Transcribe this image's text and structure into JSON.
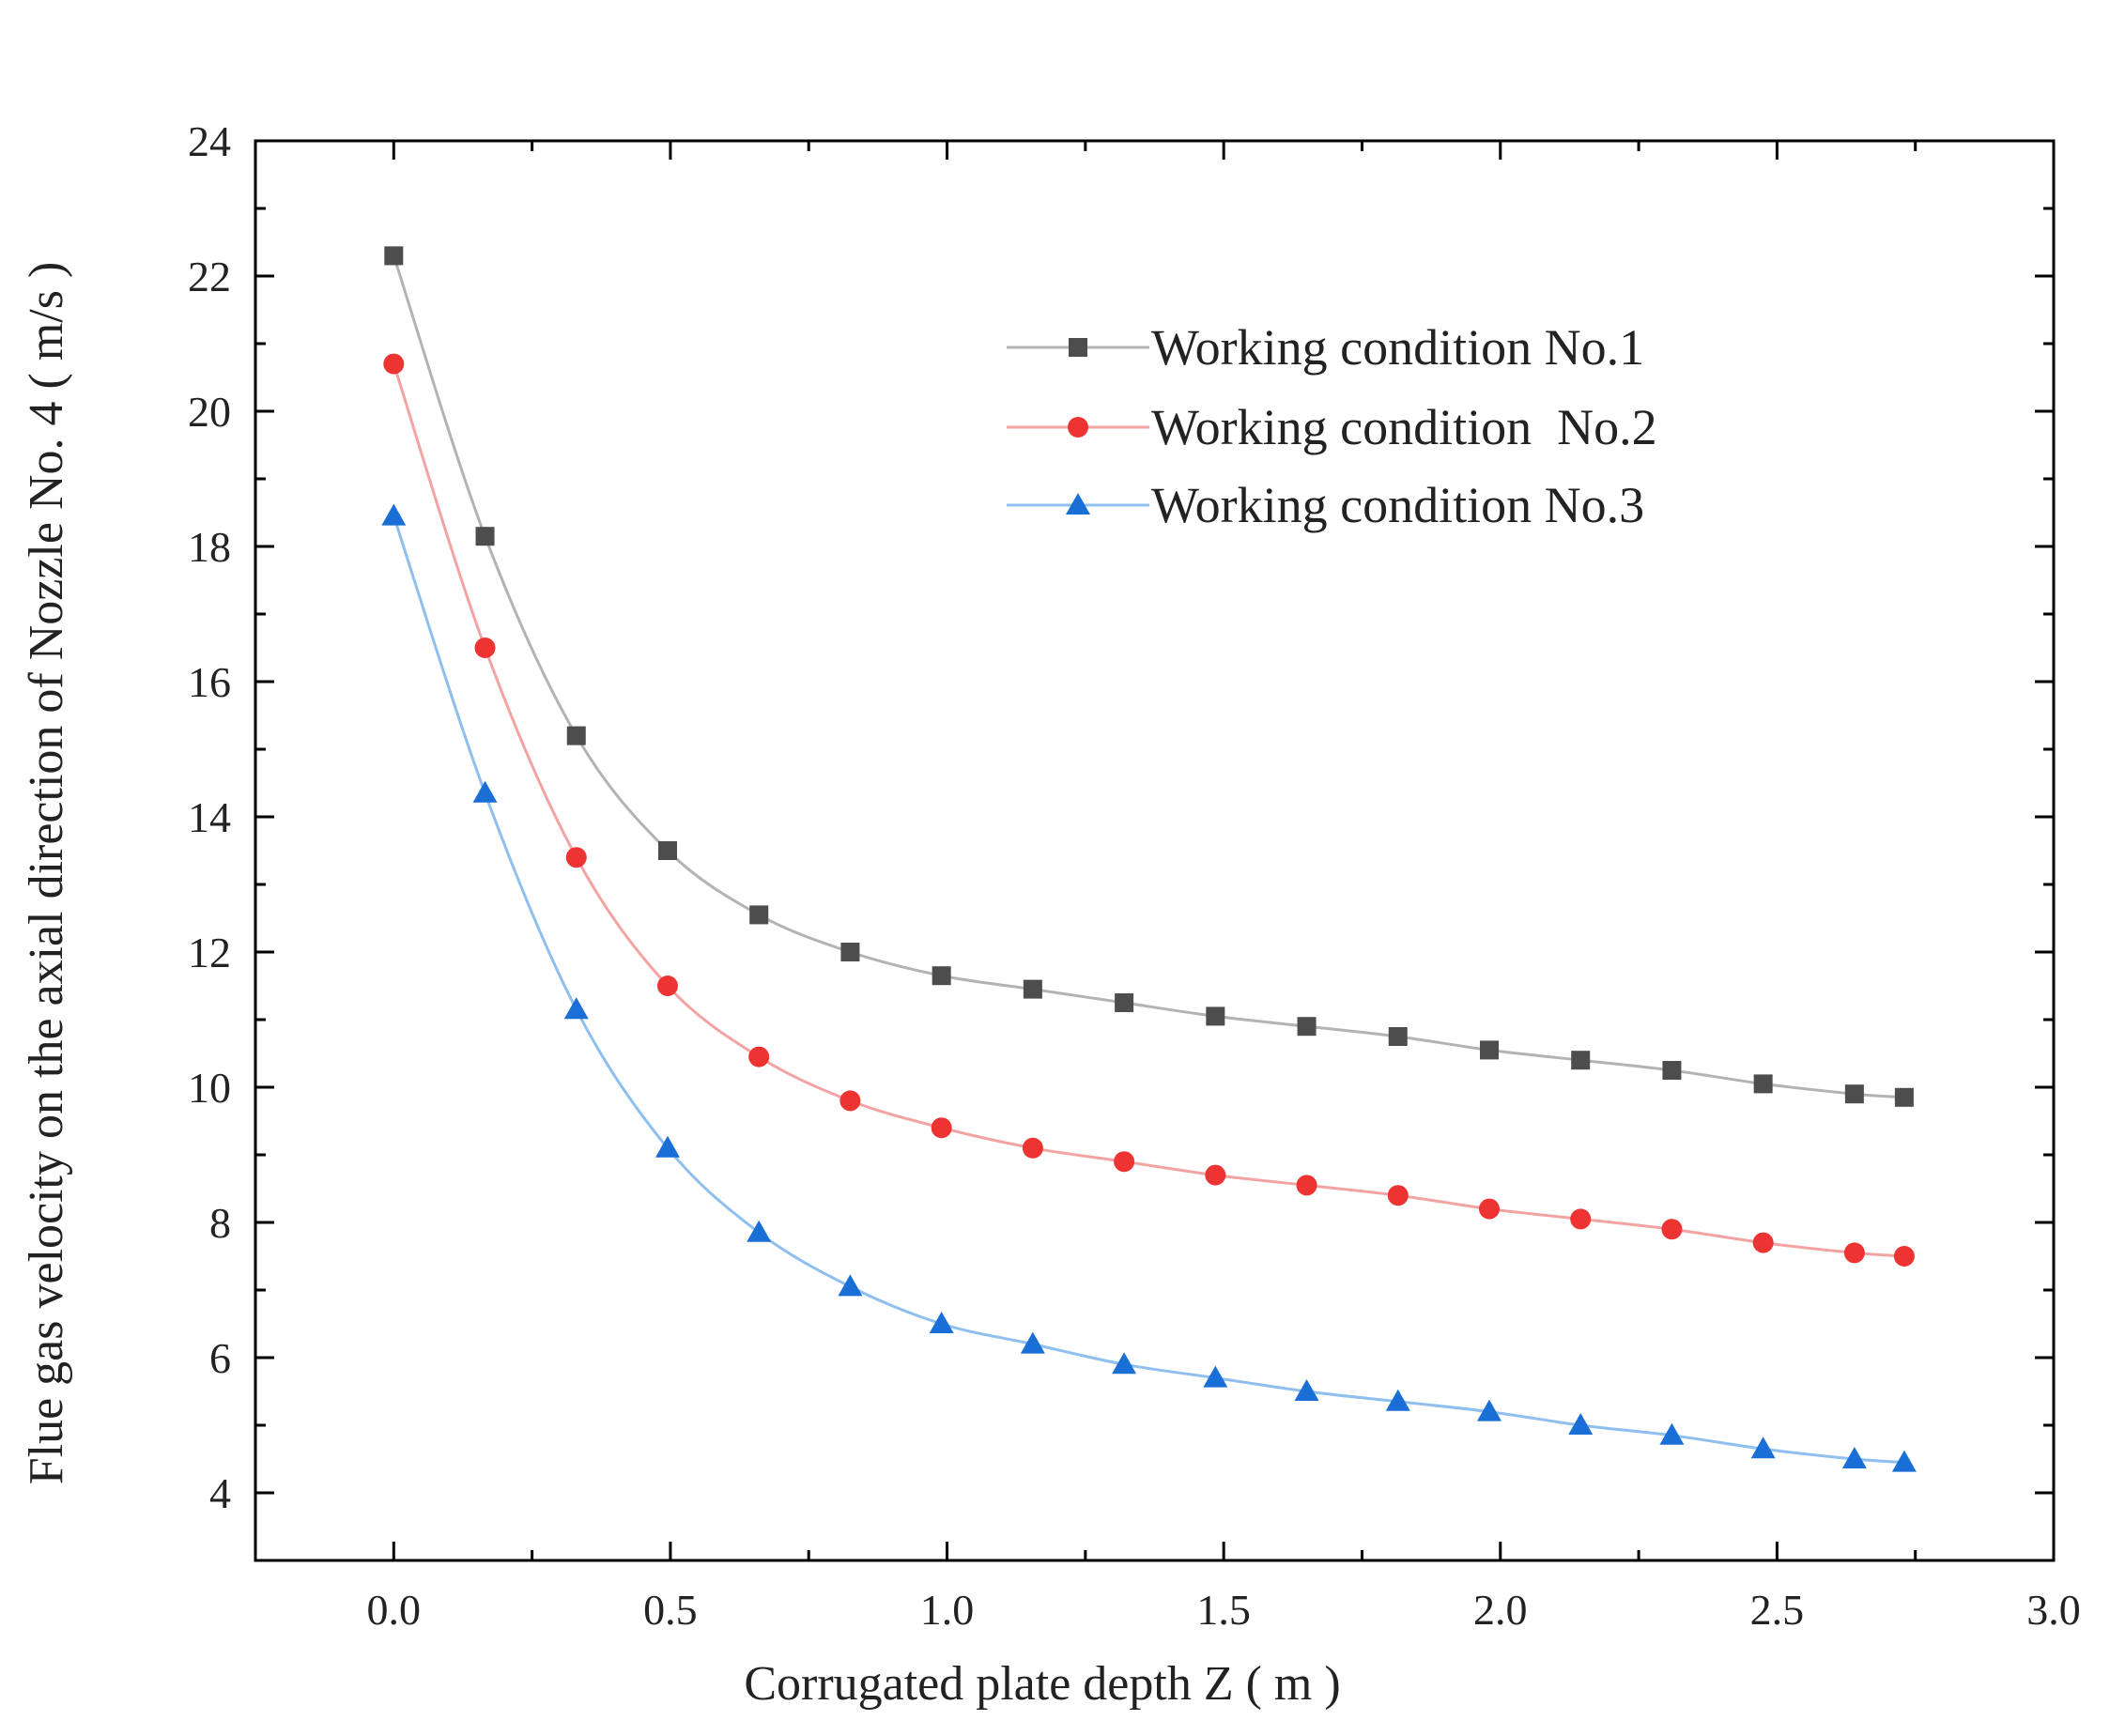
{
  "chart_data": {
    "type": "line",
    "title": "",
    "xlabel": "Corrugated plate depth Z ( m )",
    "ylabel": "Flue gas velocity on the axial direction of  Nozzle No. 4 ( m/s )",
    "xlim": [
      -0.25,
      3.0
    ],
    "ylim": [
      3,
      24
    ],
    "x_ticks": [
      0.0,
      0.5,
      1.0,
      1.5,
      2.0,
      2.5,
      3.0
    ],
    "x_tick_labels": [
      "0.0",
      "0.5",
      "1.0",
      "1.5",
      "2.0",
      "2.5",
      "3.0"
    ],
    "y_ticks": [
      4,
      6,
      8,
      10,
      12,
      14,
      16,
      18,
      20,
      22,
      24
    ],
    "y_tick_labels": [
      "4",
      "6",
      "8",
      "10",
      "12",
      "14",
      "16",
      "18",
      "20",
      "22",
      "24"
    ],
    "grid": false,
    "legend_position": "top-right",
    "x": [
      0.0,
      0.165,
      0.33,
      0.495,
      0.66,
      0.825,
      0.99,
      1.155,
      1.32,
      1.485,
      1.65,
      1.815,
      1.98,
      2.145,
      2.31,
      2.475,
      2.64,
      2.73
    ],
    "series": [
      {
        "name": "Working condition No.1",
        "color": "#4d4d4d",
        "marker": "square",
        "values": [
          22.3,
          18.15,
          15.2,
          13.5,
          12.55,
          12.0,
          11.65,
          11.45,
          11.25,
          11.05,
          10.9,
          10.75,
          10.55,
          10.4,
          10.25,
          10.05,
          9.9,
          9.85
        ]
      },
      {
        "name": "Working condition  No.2",
        "color": "#ee3333",
        "marker": "circle",
        "values": [
          20.7,
          16.5,
          13.4,
          11.5,
          10.45,
          9.8,
          9.4,
          9.1,
          8.9,
          8.7,
          8.55,
          8.4,
          8.2,
          8.05,
          7.9,
          7.7,
          7.55,
          7.5
        ]
      },
      {
        "name": "Working condition No.3",
        "color": "#1a6fd6",
        "marker": "triangle",
        "values": [
          18.45,
          14.35,
          11.15,
          9.1,
          7.85,
          7.05,
          6.5,
          6.2,
          5.9,
          5.7,
          5.5,
          5.35,
          5.2,
          5.0,
          4.85,
          4.65,
          4.5,
          4.45
        ]
      }
    ]
  }
}
